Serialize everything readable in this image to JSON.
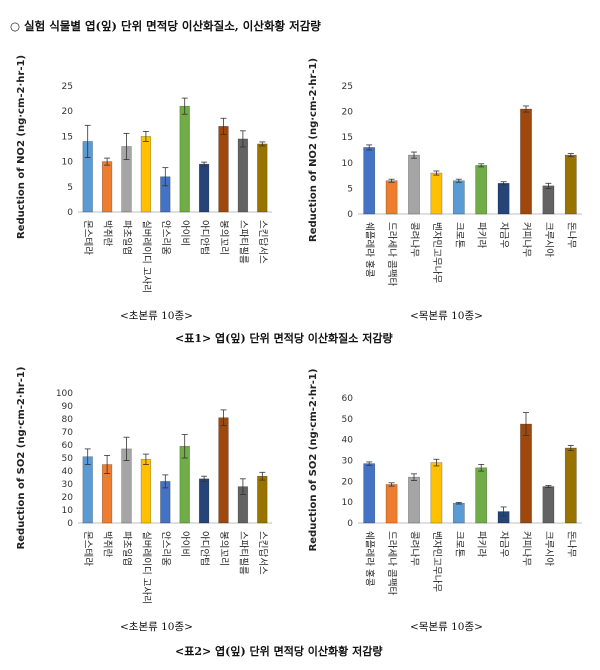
{
  "header": "○ 실험 식물별 엽(잎) 단위 면적당 이산화질소, 이산화황 저감량",
  "captions": {
    "table1": "<표1> 엽(잎) 단위 면적당 이산화질소 저감량",
    "table2": "<표2> 엽(잎) 단위 면적당 이산화황 저감량"
  },
  "chart_data": [
    {
      "type": "bar",
      "group_label": "<초본류 10종>",
      "ylabel": "Reduction of NO2 (ng·cm-2·hr-1)",
      "ylim": [
        0,
        25
      ],
      "yticks": [
        0,
        5,
        10,
        15,
        20,
        25
      ],
      "categories": [
        "몬스테라",
        "박쥐란",
        "파초일엽",
        "실버레이디 고사리",
        "안스리움",
        "아이비",
        "아디안텀",
        "봉의꼬리",
        "스파티필름",
        "스킨답서스"
      ],
      "values": [
        14.0,
        10.0,
        13.0,
        15.0,
        7.0,
        21.0,
        9.5,
        17.0,
        14.5,
        13.5
      ],
      "errors": [
        3.2,
        0.7,
        2.6,
        1.0,
        1.8,
        1.6,
        0.4,
        1.6,
        1.6,
        0.4
      ],
      "colors": [
        "#5b9bd5",
        "#ed7d31",
        "#a5a5a5",
        "#ffc000",
        "#4472c4",
        "#70ad47",
        "#264478",
        "#9e480e",
        "#636363",
        "#997300"
      ]
    },
    {
      "type": "bar",
      "group_label": "<목본류 10종>",
      "ylabel": "Reduction of NO2 (ng·cm-2·hr-1)",
      "ylim": [
        0,
        25
      ],
      "yticks": [
        0,
        5,
        10,
        15,
        20,
        25
      ],
      "categories": [
        "쉐플레라 홍콩",
        "드라세나 콤팩타",
        "콩려나무",
        "벤자민고무나무",
        "크로톤",
        "파키라",
        "자금우",
        "커피나무",
        "크루시아",
        "돈나무"
      ],
      "values": [
        13.0,
        6.5,
        11.5,
        8.0,
        6.5,
        9.5,
        6.0,
        20.5,
        5.5,
        11.5
      ],
      "errors": [
        0.5,
        0.3,
        0.6,
        0.4,
        0.3,
        0.3,
        0.3,
        0.6,
        0.5,
        0.3
      ],
      "colors": [
        "#4472c4",
        "#ed7d31",
        "#a5a5a5",
        "#ffc000",
        "#5b9bd5",
        "#70ad47",
        "#264478",
        "#9e480e",
        "#636363",
        "#997300"
      ]
    },
    {
      "type": "bar",
      "group_label": "<초본류 10종>",
      "ylabel": "Reduction of SO2 (ng·cm-2·hr-1)",
      "ylim": [
        0,
        100
      ],
      "yticks": [
        0,
        10,
        20,
        30,
        40,
        50,
        60,
        70,
        80,
        90,
        100
      ],
      "categories": [
        "몬스테라",
        "박쥐란",
        "파초일엽",
        "실버레이디 고사리",
        "안스리움",
        "아이비",
        "아디안텀",
        "봉의꼬리",
        "스파티필름",
        "스킨답서스"
      ],
      "values": [
        51,
        45,
        57,
        49,
        32,
        59,
        34,
        81,
        28,
        36
      ],
      "errors": [
        6,
        7,
        9,
        4,
        5,
        9,
        2,
        6,
        6,
        3
      ],
      "colors": [
        "#5b9bd5",
        "#ed7d31",
        "#a5a5a5",
        "#ffc000",
        "#4472c4",
        "#70ad47",
        "#264478",
        "#9e480e",
        "#636363",
        "#997300"
      ]
    },
    {
      "type": "bar",
      "group_label": "<목본류 10종>",
      "ylabel": "Reduction of SO2 (ng·cm-2·hr-1)",
      "ylim": [
        0,
        60
      ],
      "yticks": [
        0,
        10,
        20,
        30,
        40,
        50,
        60
      ],
      "categories": [
        "쉐플레라 홍콩",
        "드라세나 콤팩타",
        "콩려나무",
        "벤자민고무나무",
        "크로톤",
        "파키라",
        "자금우",
        "커피나무",
        "크루시아",
        "돈나무"
      ],
      "values": [
        28.5,
        18.5,
        22.0,
        29.0,
        9.5,
        26.5,
        5.5,
        47.5,
        17.5,
        36.0
      ],
      "errors": [
        0.8,
        0.8,
        1.6,
        1.6,
        0.4,
        1.6,
        2.2,
        5.5,
        0.5,
        1.2
      ],
      "colors": [
        "#4472c4",
        "#ed7d31",
        "#a5a5a5",
        "#ffc000",
        "#5b9bd5",
        "#70ad47",
        "#264478",
        "#9e480e",
        "#636363",
        "#997300"
      ]
    }
  ]
}
